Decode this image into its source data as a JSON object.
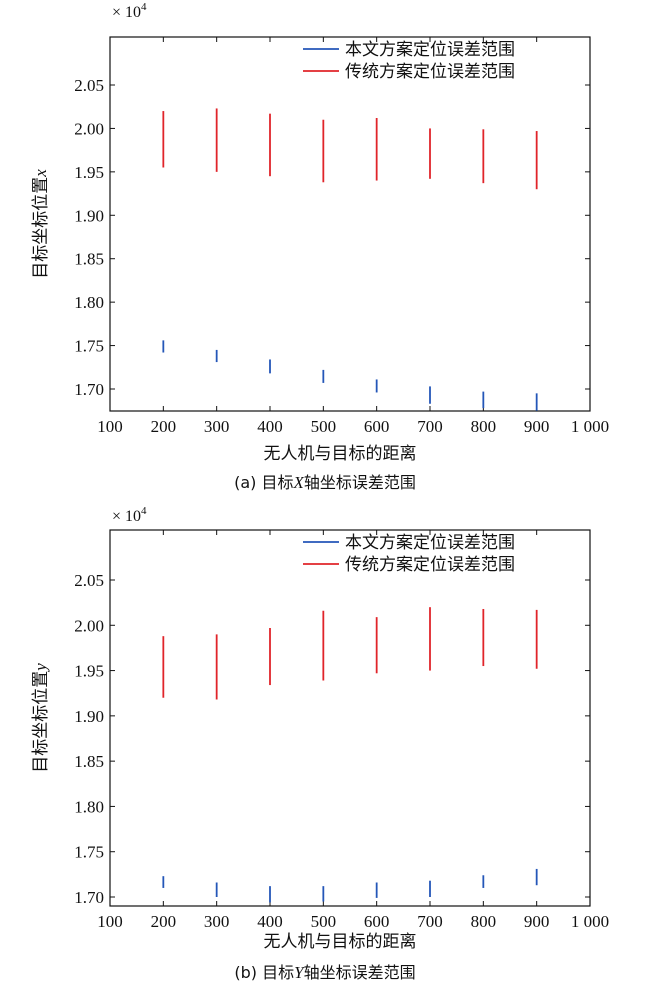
{
  "chart_data": [
    {
      "type": "range-bar",
      "caption_prefix": "(a) 目标",
      "caption_axis": "X",
      "caption_suffix": "轴坐标误差范围",
      "xlabel": "无人机与目标的距离",
      "ylabel_text": "目标坐标位置",
      "ylabel_var": "x",
      "y_multiplier": "× 10",
      "y_multiplier_exp": "4",
      "xlim": [
        100,
        1000
      ],
      "ylim": [
        1.675,
        2.075
      ],
      "xticks": [
        "100",
        "200",
        "300",
        "400",
        "500",
        "600",
        "700",
        "800",
        "900",
        "1 000"
      ],
      "yticks": [
        "2.05",
        "2.00",
        "1.95",
        "1.90",
        "1.85",
        "1.80",
        "1.75",
        "1.70"
      ],
      "grid": false,
      "legend_position": "top-right",
      "series": [
        {
          "name": "本文方案定位误差范围",
          "color": "#2456b8",
          "x": [
            200,
            300,
            400,
            500,
            600,
            700,
            800,
            900
          ],
          "low": [
            1.742,
            1.731,
            1.718,
            1.707,
            1.696,
            1.683,
            1.678,
            1.675
          ],
          "high": [
            1.756,
            1.745,
            1.734,
            1.722,
            1.711,
            1.703,
            1.697,
            1.695
          ]
        },
        {
          "name": "传统方案定位误差范围",
          "color": "#e0242a",
          "x": [
            200,
            300,
            400,
            500,
            600,
            700,
            800,
            900
          ],
          "low": [
            1.955,
            1.95,
            1.945,
            1.938,
            1.94,
            1.942,
            1.937,
            1.93
          ],
          "high": [
            2.02,
            2.023,
            2.017,
            2.01,
            2.012,
            2.0,
            1.999,
            1.997
          ]
        }
      ]
    },
    {
      "type": "range-bar",
      "caption_prefix": "(b) 目标",
      "caption_axis": "Y",
      "caption_suffix": "轴坐标误差范围",
      "xlabel": "无人机与目标的距离",
      "ylabel_text": "目标坐标位置",
      "ylabel_var": "y",
      "y_multiplier": "× 10",
      "y_multiplier_exp": "4",
      "xlim": [
        100,
        1000
      ],
      "ylim": [
        1.69,
        2.075
      ],
      "xticks": [
        "100",
        "200",
        "300",
        "400",
        "500",
        "600",
        "700",
        "800",
        "900",
        "1 000"
      ],
      "yticks": [
        "2.05",
        "2.00",
        "1.95",
        "1.90",
        "1.85",
        "1.80",
        "1.75",
        "1.70"
      ],
      "grid": false,
      "legend_position": "top-right",
      "series": [
        {
          "name": "本文方案定位误差范围",
          "color": "#2456b8",
          "x": [
            200,
            300,
            400,
            500,
            600,
            700,
            800,
            900
          ],
          "low": [
            1.71,
            1.7,
            1.694,
            1.695,
            1.699,
            1.7,
            1.71,
            1.713
          ],
          "high": [
            1.723,
            1.716,
            1.712,
            1.712,
            1.716,
            1.718,
            1.724,
            1.731
          ]
        },
        {
          "name": "传统方案定位误差范围",
          "color": "#e0242a",
          "x": [
            200,
            300,
            400,
            500,
            600,
            700,
            800,
            900
          ],
          "low": [
            1.92,
            1.918,
            1.934,
            1.939,
            1.947,
            1.95,
            1.955,
            1.952
          ],
          "high": [
            1.988,
            1.99,
            1.997,
            2.016,
            2.009,
            2.02,
            2.018,
            2.017
          ]
        }
      ]
    }
  ]
}
